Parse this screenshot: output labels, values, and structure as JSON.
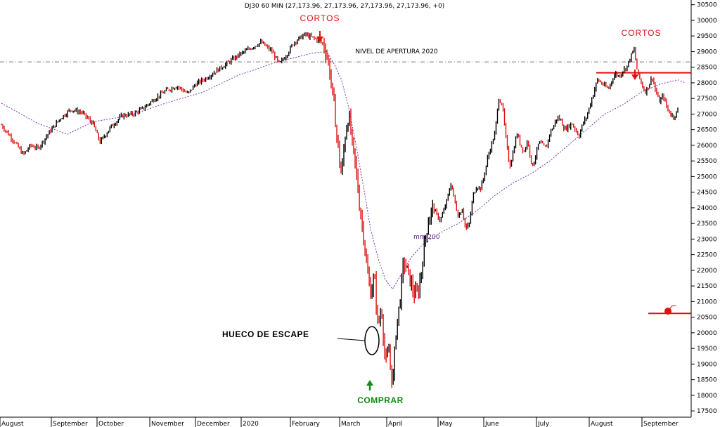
{
  "chart_data": {
    "type": "candlestick",
    "title": "DJ30 60 MIN (27,173.96, 27,173.96, 27,173.96, 27,173.96, +0)",
    "y_ticks": [
      17500,
      18000,
      18500,
      19000,
      19500,
      20000,
      20500,
      21000,
      21500,
      22000,
      22500,
      23000,
      23500,
      24000,
      24500,
      25000,
      25500,
      26000,
      26500,
      27000,
      27500,
      28000,
      28500,
      29000,
      29500,
      30000,
      30500
    ],
    "ylim": [
      17300,
      30650
    ],
    "x_months": [
      "August",
      "September",
      "October",
      "November",
      "December",
      "2020",
      "February",
      "March",
      "April",
      "May",
      "June",
      "July",
      "August",
      "September"
    ],
    "price_path": [
      [
        0,
        26650
      ],
      [
        3,
        26200
      ],
      [
        6,
        25700
      ],
      [
        8,
        26000
      ],
      [
        10,
        25900
      ],
      [
        13,
        26400
      ],
      [
        16,
        26850
      ],
      [
        19,
        27150
      ],
      [
        22,
        27050
      ],
      [
        25,
        26700
      ],
      [
        27,
        26100
      ],
      [
        30,
        26600
      ],
      [
        33,
        26950
      ],
      [
        36,
        27000
      ],
      [
        39,
        27200
      ],
      [
        42,
        27500
      ],
      [
        45,
        27750
      ],
      [
        48,
        27900
      ],
      [
        51,
        27650
      ],
      [
        53,
        27950
      ],
      [
        56,
        28150
      ],
      [
        59,
        28400
      ],
      [
        62,
        28650
      ],
      [
        65,
        28900
      ],
      [
        68,
        29100
      ],
      [
        71,
        29300
      ],
      [
        74,
        29000
      ],
      [
        76,
        28600
      ],
      [
        78,
        28900
      ],
      [
        80,
        29300
      ],
      [
        83,
        29550
      ],
      [
        86,
        29400
      ],
      [
        88,
        29250
      ],
      [
        89,
        28900
      ],
      [
        90,
        28200
      ],
      [
        91,
        27200
      ],
      [
        92,
        26000
      ],
      [
        93,
        25000
      ],
      [
        94,
        26300
      ],
      [
        95,
        27000
      ],
      [
        96,
        26000
      ],
      [
        97,
        25200
      ],
      [
        98,
        24000
      ],
      [
        99,
        23200
      ],
      [
        100,
        22000
      ],
      [
        101,
        21300
      ],
      [
        102,
        21800
      ],
      [
        103,
        20200
      ],
      [
        104,
        20800
      ],
      [
        105,
        19000
      ],
      [
        106,
        19400
      ],
      [
        107,
        18300
      ],
      [
        108,
        20200
      ],
      [
        109,
        21000
      ],
      [
        110,
        22300
      ],
      [
        111,
        22000
      ],
      [
        112,
        21600
      ],
      [
        113,
        21200
      ],
      [
        114,
        21300
      ],
      [
        115,
        22100
      ],
      [
        116,
        23100
      ],
      [
        117,
        23700
      ],
      [
        118,
        24000
      ],
      [
        119,
        23800
      ],
      [
        120,
        23600
      ],
      [
        121,
        23900
      ],
      [
        122,
        24300
      ],
      [
        123,
        24800
      ],
      [
        124,
        24200
      ],
      [
        125,
        23700
      ],
      [
        126,
        24000
      ],
      [
        127,
        23300
      ],
      [
        128,
        23500
      ],
      [
        129,
        24400
      ],
      [
        130,
        24700
      ],
      [
        131,
        24600
      ],
      [
        132,
        25000
      ],
      [
        133,
        25600
      ],
      [
        134,
        26000
      ],
      [
        135,
        26400
      ],
      [
        136,
        27500
      ],
      [
        137,
        27300
      ],
      [
        138,
        26200
      ],
      [
        139,
        25300
      ],
      [
        140,
        25800
      ],
      [
        141,
        26400
      ],
      [
        142,
        26000
      ],
      [
        143,
        25800
      ],
      [
        144,
        26200
      ],
      [
        145,
        25300
      ],
      [
        146,
        25600
      ],
      [
        147,
        26100
      ],
      [
        148,
        26000
      ],
      [
        149,
        25900
      ],
      [
        150,
        26400
      ],
      [
        151,
        26600
      ],
      [
        152,
        26900
      ],
      [
        153,
        26800
      ],
      [
        154,
        26500
      ],
      [
        155,
        26600
      ],
      [
        156,
        26700
      ],
      [
        157,
        26500
      ],
      [
        158,
        26300
      ],
      [
        159,
        26700
      ],
      [
        160,
        26900
      ],
      [
        161,
        27300
      ],
      [
        162,
        27700
      ],
      [
        163,
        28100
      ],
      [
        164,
        28000
      ],
      [
        165,
        27900
      ],
      [
        166,
        27800
      ],
      [
        167,
        28100
      ],
      [
        168,
        28300
      ],
      [
        169,
        28200
      ],
      [
        170,
        28400
      ],
      [
        171,
        28500
      ],
      [
        172,
        28800
      ],
      [
        173,
        29100
      ],
      [
        174,
        28300
      ],
      [
        175,
        28000
      ],
      [
        176,
        27700
      ],
      [
        177,
        27900
      ],
      [
        178,
        28200
      ],
      [
        179,
        27700
      ],
      [
        180,
        27400
      ],
      [
        181,
        27600
      ],
      [
        182,
        27200
      ],
      [
        183,
        27000
      ],
      [
        184,
        26900
      ],
      [
        185,
        27150
      ]
    ],
    "moving_average": {
      "label": "mm 200",
      "points": [
        [
          0,
          27350
        ],
        [
          10,
          26700
        ],
        [
          18,
          26350
        ],
        [
          25,
          26750
        ],
        [
          35,
          26950
        ],
        [
          45,
          27350
        ],
        [
          55,
          27700
        ],
        [
          65,
          28250
        ],
        [
          75,
          28650
        ],
        [
          85,
          28950
        ],
        [
          89,
          29000
        ],
        [
          91,
          28600
        ],
        [
          93,
          28100
        ],
        [
          95,
          27200
        ],
        [
          97,
          26000
        ],
        [
          99,
          24700
        ],
        [
          101,
          23300
        ],
        [
          103,
          22400
        ],
        [
          105,
          21700
        ],
        [
          107,
          21400
        ],
        [
          109,
          21800
        ],
        [
          112,
          22400
        ],
        [
          115,
          22800
        ],
        [
          120,
          23200
        ],
        [
          125,
          23500
        ],
        [
          130,
          23900
        ],
        [
          135,
          24400
        ],
        [
          140,
          24800
        ],
        [
          145,
          25100
        ],
        [
          150,
          25500
        ],
        [
          155,
          26000
        ],
        [
          160,
          26500
        ],
        [
          165,
          27000
        ],
        [
          170,
          27300
        ],
        [
          175,
          27700
        ],
        [
          180,
          27950
        ],
        [
          185,
          28100
        ],
        [
          187,
          28000
        ]
      ]
    },
    "horizontal_lines": [
      {
        "label": "NIVEL DE APERTURA 2020",
        "value": 28670,
        "style": "dash-dot",
        "color": "#777777"
      },
      {
        "label": "",
        "value": 28320,
        "style": "solid",
        "color": "#e01010"
      },
      {
        "label": "",
        "value": 20620,
        "style": "solid",
        "color": "#e01010"
      }
    ],
    "legend": "none",
    "grid": false
  },
  "annotations": {
    "cortos_1": "CORTOS",
    "cortos_2": "CORTOS",
    "nivel_apertura": "NIVEL DE APERTURA 2020",
    "mm200": "mm 200",
    "hueco": "HUECO DE ESCAPE",
    "comprar": "COMPRAR"
  },
  "colors": {
    "up_bar": "#000000",
    "down_bar": "#e01010",
    "moving_average": "#7a3aa6",
    "arrow_sell": "#e01010",
    "arrow_buy": "#138a13"
  }
}
